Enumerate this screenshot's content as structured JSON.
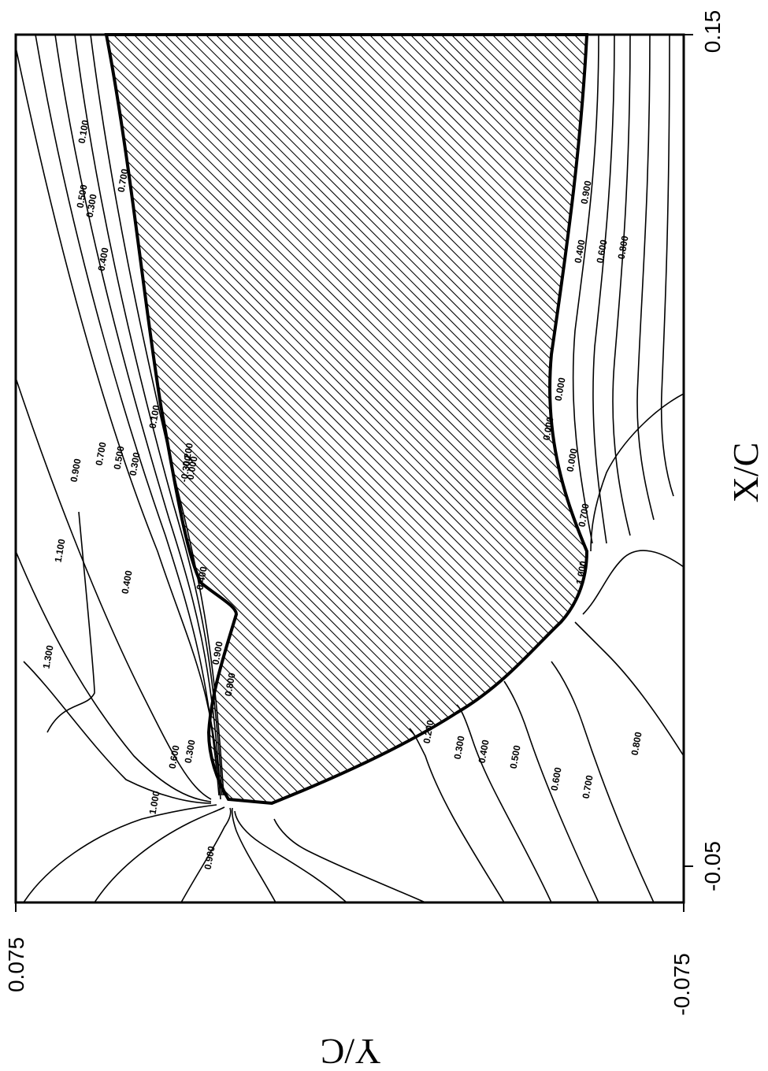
{
  "chart_data": {
    "type": "contour",
    "x_axis": {
      "label": "X/C",
      "ticks": [
        "-0.05",
        "0.15"
      ],
      "range": [
        -0.05,
        0.15
      ]
    },
    "y_axis": {
      "label": "Y/C",
      "ticks": [
        "0.075",
        "-0.075"
      ],
      "range": [
        -0.075,
        0.075
      ]
    },
    "contour_labels": [
      "0.700",
      "0.500",
      "0.300",
      "0.100",
      "0.400",
      "0.100",
      "0.700",
      "0.900",
      "0.500",
      "1.100",
      "0.300",
      "0.400",
      "-0.300",
      "-0.200",
      "0.000",
      "0.400",
      "1.300",
      "0.900",
      "0.800",
      "0.300",
      "0.600",
      "0.900",
      "0.800",
      "0.600",
      "0.400",
      "0.000",
      "0.000",
      "0.000",
      "0.700",
      "1.000",
      "0.200",
      "0.300",
      "0.400",
      "0.500",
      "0.600",
      "0.700",
      "0.800",
      "1.000",
      "0.900"
    ],
    "grid": false,
    "legend": "none"
  }
}
